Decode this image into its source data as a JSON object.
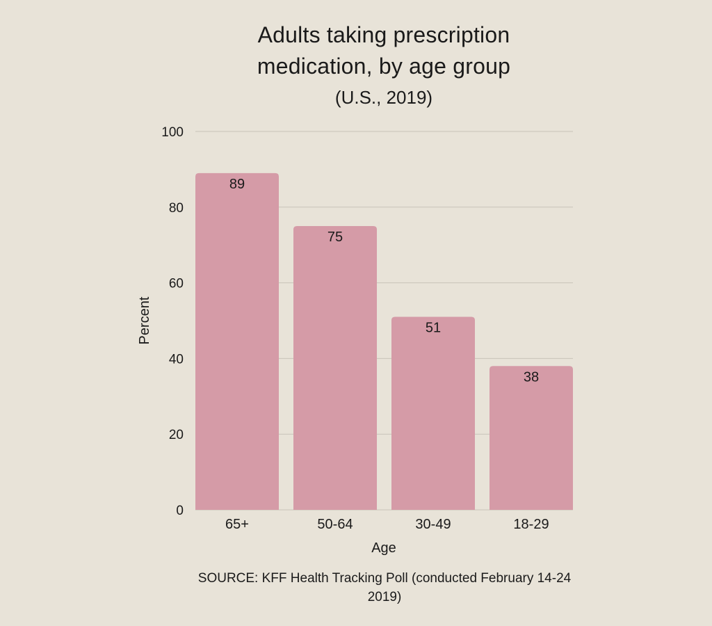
{
  "chart_data": {
    "type": "bar",
    "title_lines": [
      "Adults taking prescription",
      "medication, by age group"
    ],
    "subtitle": "(U.S., 2019)",
    "categories": [
      "65+",
      "50-64",
      "30-49",
      "18-29"
    ],
    "values": [
      89,
      75,
      51,
      38
    ],
    "data_labels": [
      "89",
      "75",
      "51",
      "38"
    ],
    "xlabel": "Age",
    "ylabel": "Percent",
    "ylim": [
      0,
      100
    ],
    "yticks": [
      0,
      20,
      40,
      60,
      80,
      100
    ],
    "grid": true,
    "bar_color": "#d59ba7",
    "grid_color": "#c8c3b9",
    "source": "SOURCE: KFF Health Tracking Poll (conducted February 14-24 2019)"
  },
  "colors": {
    "background": "#e8e3d8",
    "text": "#1a1a1a"
  }
}
